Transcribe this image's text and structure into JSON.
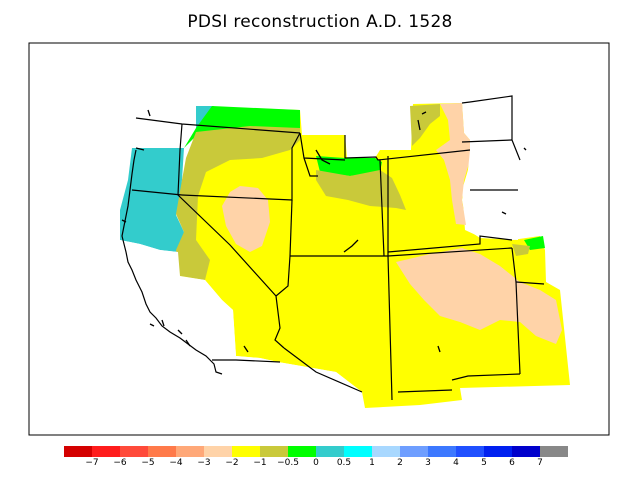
{
  "title": "PDSI reconstruction A.D. 1528",
  "legend": {
    "colors": [
      "#d40000",
      "#ff1c1c",
      "#ff4a3a",
      "#ff7a4a",
      "#ffa878",
      "#ffd3a8",
      "#ffff00",
      "#c9c93a",
      "#00ff00",
      "#33cccc",
      "#00ffff",
      "#a8d8ff",
      "#6e9eff",
      "#3c78ff",
      "#2050ff",
      "#0020f0",
      "#0000cc",
      "#888888"
    ],
    "labels": [
      "−7",
      "−6",
      "−5",
      "−4",
      "−3",
      "−2",
      "−1",
      "−0.5",
      "0",
      "0.5",
      "1",
      "2",
      "3",
      "4",
      "5",
      "6",
      "7"
    ]
  }
}
